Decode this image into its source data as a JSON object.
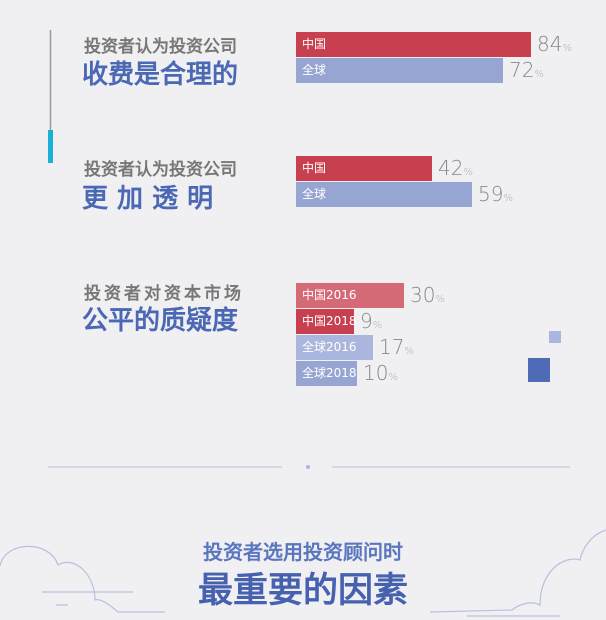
{
  "colors": {
    "china": "#c8404f",
    "china_light": "#d56a77",
    "global": "#97a5d2",
    "global_light": "#aab6dd",
    "title_blue": "#4a68b4",
    "accent_cyan": "#1ab0d8"
  },
  "chart_data": [
    {
      "type": "bar",
      "orientation": "horizontal",
      "title_line1": "投资者认为投资公司",
      "title_line2": "收费是合理的",
      "categories": [
        "中国",
        "全球"
      ],
      "values": [
        84,
        72
      ],
      "unit": "%"
    },
    {
      "type": "bar",
      "orientation": "horizontal",
      "title_line1": "投资者认为投资公司",
      "title_line2": "更 加 透 明",
      "categories": [
        "中国",
        "全球"
      ],
      "values": [
        42,
        59
      ],
      "unit": "%"
    },
    {
      "type": "bar",
      "orientation": "horizontal",
      "title_line1": "投资者对资本市场",
      "title_line2": "公平的质疑度",
      "categories": [
        "中国2016",
        "中国2018",
        "全球2016",
        "全球2018"
      ],
      "values": [
        30,
        9,
        17,
        10
      ],
      "unit": "%"
    }
  ],
  "footer": {
    "line1": "投资者选用投资顾问时",
    "line2": "最重要的因素"
  }
}
